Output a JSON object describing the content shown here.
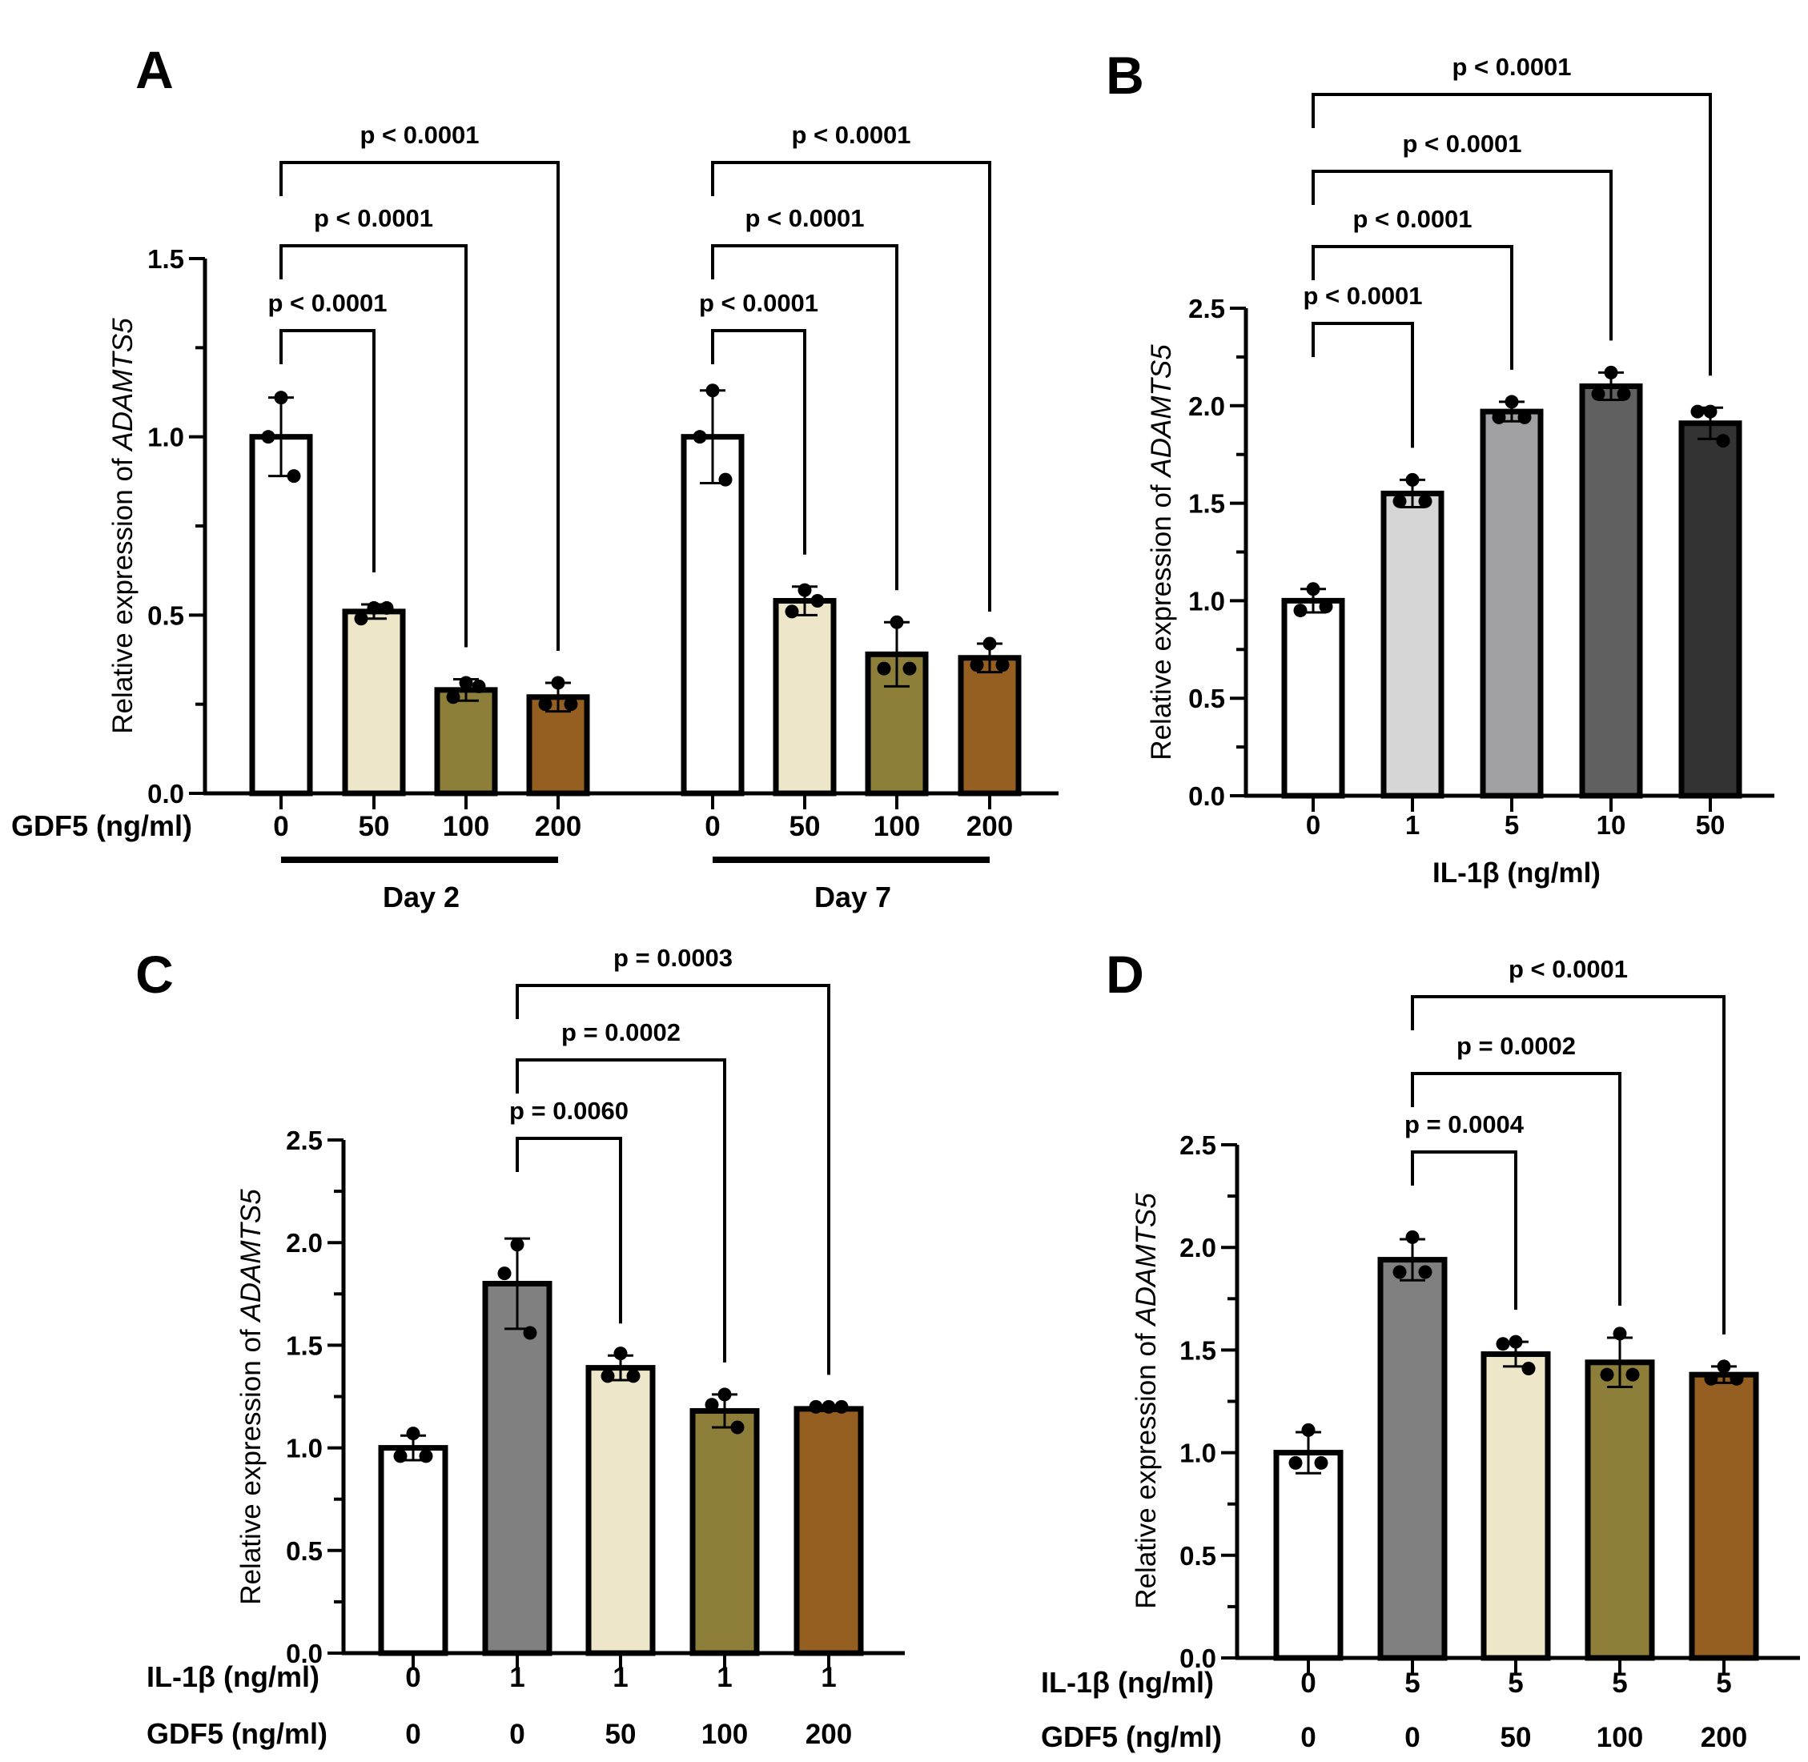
{
  "figure": {
    "panels": [
      "A",
      "B",
      "C",
      "D"
    ]
  },
  "chart_data": [
    {
      "panel": "A",
      "type": "bar",
      "title": "",
      "ylabel_prefix": "Relative expression of ",
      "ylabel_gene": "ADAMTS5",
      "ylim": [
        0,
        1.5
      ],
      "yticks": [
        "0.0",
        "0.5",
        "1.0",
        "1.5"
      ],
      "ytick_values": [
        0,
        0.5,
        1.0,
        1.5
      ],
      "minor_tick_step": 0.25,
      "row_labels": [
        "GDF5 (ng/ml)"
      ],
      "groups": [
        {
          "label": "Day 2",
          "categories": [
            "0",
            "50",
            "100",
            "200"
          ]
        },
        {
          "label": "Day 7",
          "categories": [
            "0",
            "50",
            "100",
            "200"
          ]
        }
      ],
      "categories": [
        "0",
        "50",
        "100",
        "200",
        "0",
        "50",
        "100",
        "200"
      ],
      "values": [
        1.0,
        0.51,
        0.29,
        0.27,
        1.0,
        0.54,
        0.39,
        0.38
      ],
      "errors": [
        0.11,
        0.02,
        0.03,
        0.04,
        0.13,
        0.04,
        0.09,
        0.04
      ],
      "points": [
        [
          1.11,
          1.0,
          0.89
        ],
        [
          0.52,
          0.49,
          0.52
        ],
        [
          0.31,
          0.27,
          0.3
        ],
        [
          0.31,
          0.25,
          0.25
        ],
        [
          1.13,
          1.0,
          0.88
        ],
        [
          0.57,
          0.51,
          0.54
        ],
        [
          0.48,
          0.35,
          0.35
        ],
        [
          0.42,
          0.36,
          0.36
        ]
      ],
      "colors": [
        "#ffffff",
        "#ede6c8",
        "#8d7f3a",
        "#955f22",
        "#ffffff",
        "#ede6c8",
        "#8d7f3a",
        "#955f22"
      ],
      "comparisons": [
        {
          "from": 0,
          "to": 1,
          "label": "p < 0.0001"
        },
        {
          "from": 0,
          "to": 2,
          "label": "p < 0.0001"
        },
        {
          "from": 0,
          "to": 3,
          "label": "p < 0.0001"
        },
        {
          "from": 4,
          "to": 5,
          "label": "p < 0.0001"
        },
        {
          "from": 4,
          "to": 6,
          "label": "p < 0.0001"
        },
        {
          "from": 4,
          "to": 7,
          "label": "p < 0.0001"
        }
      ]
    },
    {
      "panel": "B",
      "type": "bar",
      "title": "",
      "ylabel_prefix": "Relative expression of ",
      "ylabel_gene": "ADAMTS5",
      "xlabel": "IL-1β (ng/ml)",
      "ylim": [
        0,
        2.5
      ],
      "yticks": [
        "0.0",
        "0.5",
        "1.0",
        "1.5",
        "2.0",
        "2.5"
      ],
      "ytick_values": [
        0,
        0.5,
        1.0,
        1.5,
        2.0,
        2.5
      ],
      "minor_tick_step": 0.25,
      "categories": [
        "0",
        "1",
        "5",
        "10",
        "50"
      ],
      "values": [
        1.0,
        1.55,
        1.97,
        2.1,
        1.91
      ],
      "errors": [
        0.06,
        0.07,
        0.05,
        0.07,
        0.08
      ],
      "points": [
        [
          1.06,
          0.95,
          0.97
        ],
        [
          1.62,
          1.51,
          1.51
        ],
        [
          2.02,
          1.94,
          1.94
        ],
        [
          2.17,
          2.06,
          2.06
        ],
        [
          1.97,
          1.97,
          1.82
        ]
      ],
      "colors": [
        "#ffffff",
        "#d6d6d6",
        "#a0a0a4",
        "#606060",
        "#333333"
      ],
      "comparisons": [
        {
          "from": 0,
          "to": 1,
          "label": "p < 0.0001"
        },
        {
          "from": 0,
          "to": 2,
          "label": "p < 0.0001"
        },
        {
          "from": 0,
          "to": 3,
          "label": "p < 0.0001"
        },
        {
          "from": 0,
          "to": 4,
          "label": "p < 0.0001"
        }
      ]
    },
    {
      "panel": "C",
      "type": "bar",
      "title": "",
      "ylabel_prefix": "Relative expression of ",
      "ylabel_gene": "ADAMTS5",
      "ylim": [
        0,
        2.5
      ],
      "yticks": [
        "0.0",
        "0.5",
        "1.0",
        "1.5",
        "2.0",
        "2.5"
      ],
      "ytick_values": [
        0,
        0.5,
        1.0,
        1.5,
        2.0,
        2.5
      ],
      "minor_tick_step": 0.25,
      "row_labels": [
        "IL-1β (ng/ml)",
        "GDF5 (ng/ml)"
      ],
      "rows": [
        [
          "0",
          "1",
          "1",
          "1",
          "1"
        ],
        [
          "0",
          "0",
          "50",
          "100",
          "200"
        ]
      ],
      "values": [
        1.0,
        1.8,
        1.39,
        1.18,
        1.19
      ],
      "errors": [
        0.06,
        0.22,
        0.06,
        0.08,
        0.01
      ],
      "points": [
        [
          1.07,
          0.96,
          0.96
        ],
        [
          1.99,
          1.85,
          1.56
        ],
        [
          1.46,
          1.35,
          1.35
        ],
        [
          1.26,
          1.21,
          1.1
        ],
        [
          1.2,
          1.2,
          1.2
        ]
      ],
      "colors": [
        "#ffffff",
        "#808080",
        "#ede6c8",
        "#8d7f3a",
        "#955f22"
      ],
      "comparisons": [
        {
          "from": 1,
          "to": 2,
          "label": "p = 0.0060"
        },
        {
          "from": 1,
          "to": 3,
          "label": "p = 0.0002"
        },
        {
          "from": 1,
          "to": 4,
          "label": "p = 0.0003"
        }
      ]
    },
    {
      "panel": "D",
      "type": "bar",
      "title": "",
      "ylabel_prefix": "Relative expression of ",
      "ylabel_gene": "ADAMTS5",
      "ylim": [
        0,
        2.5
      ],
      "yticks": [
        "0.0",
        "0.5",
        "1.0",
        "1.5",
        "2.0",
        "2.5"
      ],
      "ytick_values": [
        0,
        0.5,
        1.0,
        1.5,
        2.0,
        2.5
      ],
      "minor_tick_step": 0.25,
      "row_labels": [
        "IL-1β (ng/ml)",
        "GDF5 (ng/ml)"
      ],
      "rows": [
        [
          "0",
          "5",
          "5",
          "5",
          "5"
        ],
        [
          "0",
          "0",
          "50",
          "100",
          "200"
        ]
      ],
      "values": [
        1.0,
        1.94,
        1.48,
        1.44,
        1.38
      ],
      "errors": [
        0.1,
        0.1,
        0.06,
        0.12,
        0.04
      ],
      "points": [
        [
          1.11,
          0.95,
          0.95
        ],
        [
          2.05,
          1.88,
          1.88
        ],
        [
          1.54,
          1.53,
          1.41
        ],
        [
          1.58,
          1.38,
          1.38
        ],
        [
          1.42,
          1.36,
          1.36
        ]
      ],
      "colors": [
        "#ffffff",
        "#808080",
        "#ede6c8",
        "#8d7f3a",
        "#955f22"
      ],
      "comparisons": [
        {
          "from": 1,
          "to": 2,
          "label": "p = 0.0004"
        },
        {
          "from": 1,
          "to": 3,
          "label": "p = 0.0002"
        },
        {
          "from": 1,
          "to": 4,
          "label": "p < 0.0001"
        }
      ]
    }
  ]
}
